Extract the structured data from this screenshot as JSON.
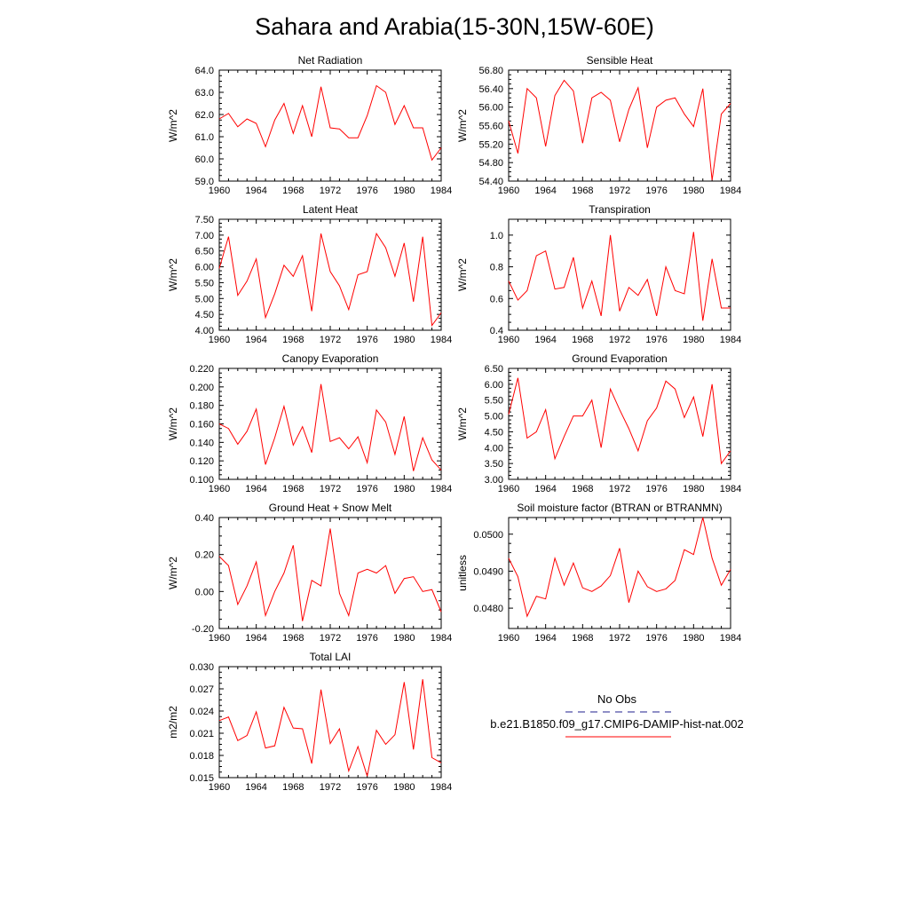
{
  "figure": {
    "title": "Sahara and Arabia(15-30N,15W-60E)",
    "line_color": "#ff0000",
    "obs_color": "#1f1f8f"
  },
  "legend": {
    "obs_label": "No Obs",
    "model_label": "b.e21.B1850.f09_g17.CMIP6-DAMIP-hist-nat.002"
  },
  "chart_data": [
    {
      "type": "line",
      "title": "Net Radiation",
      "ylabel": "W/m^2",
      "xlim": [
        1960,
        1984
      ],
      "ylim": [
        59.0,
        64.0
      ],
      "xticks": [
        "1960",
        "1964",
        "1968",
        "1972",
        "1976",
        "1980",
        "1984"
      ],
      "yticks": [
        "59.0",
        "60.0",
        "61.0",
        "62.0",
        "63.0",
        "64.0"
      ],
      "x": [
        1960,
        1961,
        1962,
        1963,
        1964,
        1965,
        1966,
        1967,
        1968,
        1969,
        1970,
        1971,
        1972,
        1973,
        1974,
        1975,
        1976,
        1977,
        1978,
        1979,
        1980,
        1981,
        1982,
        1983,
        1984
      ],
      "series": [
        {
          "values": [
            61.8,
            62.05,
            61.45,
            61.8,
            61.6,
            60.55,
            61.75,
            62.5,
            61.15,
            62.4,
            61.0,
            63.25,
            61.4,
            61.35,
            60.95,
            60.95,
            61.95,
            63.3,
            63.0,
            61.55,
            62.4,
            61.4,
            61.4,
            59.95,
            60.5
          ]
        }
      ]
    },
    {
      "type": "line",
      "title": "Sensible Heat",
      "ylabel": "W/m^2",
      "xlim": [
        1960,
        1984
      ],
      "ylim": [
        54.4,
        56.8
      ],
      "xticks": [
        "1960",
        "1964",
        "1968",
        "1972",
        "1976",
        "1980",
        "1984"
      ],
      "yticks": [
        "54.40",
        "54.80",
        "55.20",
        "55.60",
        "56.00",
        "56.40",
        "56.80"
      ],
      "x": [
        1960,
        1961,
        1962,
        1963,
        1964,
        1965,
        1966,
        1967,
        1968,
        1969,
        1970,
        1971,
        1972,
        1973,
        1974,
        1975,
        1976,
        1977,
        1978,
        1979,
        1980,
        1981,
        1982,
        1983,
        1984
      ],
      "series": [
        {
          "values": [
            55.7,
            55.0,
            56.4,
            56.2,
            55.15,
            56.25,
            56.58,
            56.35,
            55.22,
            56.2,
            56.32,
            56.15,
            55.25,
            55.95,
            56.42,
            55.12,
            56.0,
            56.15,
            56.2,
            55.85,
            55.58,
            56.4,
            54.42,
            55.85,
            56.08
          ]
        }
      ]
    },
    {
      "type": "line",
      "title": "Latent Heat",
      "ylabel": "W/m^2",
      "xlim": [
        1960,
        1984
      ],
      "ylim": [
        4.0,
        7.5
      ],
      "xticks": [
        "1960",
        "1964",
        "1968",
        "1972",
        "1976",
        "1980",
        "1984"
      ],
      "yticks": [
        "4.00",
        "4.50",
        "5.00",
        "5.50",
        "6.00",
        "6.50",
        "7.00",
        "7.50"
      ],
      "x": [
        1960,
        1961,
        1962,
        1963,
        1964,
        1965,
        1966,
        1967,
        1968,
        1969,
        1970,
        1971,
        1972,
        1973,
        1974,
        1975,
        1976,
        1977,
        1978,
        1979,
        1980,
        1981,
        1982,
        1983,
        1984
      ],
      "series": [
        {
          "values": [
            5.95,
            6.95,
            5.1,
            5.55,
            6.25,
            4.4,
            5.15,
            6.05,
            5.7,
            6.35,
            4.6,
            7.05,
            5.85,
            5.4,
            4.65,
            5.75,
            5.85,
            7.05,
            6.6,
            5.7,
            6.75,
            4.9,
            6.95,
            4.15,
            4.55
          ]
        }
      ]
    },
    {
      "type": "line",
      "title": "Transpiration",
      "ylabel": "W/m^2",
      "xlim": [
        1960,
        1984
      ],
      "ylim": [
        0.4,
        1.1
      ],
      "xticks": [
        "1960",
        "1964",
        "1968",
        "1972",
        "1976",
        "1980",
        "1984"
      ],
      "yticks": [
        "0.4",
        "0.6",
        "0.8",
        "1.0"
      ],
      "x": [
        1960,
        1961,
        1962,
        1963,
        1964,
        1965,
        1966,
        1967,
        1968,
        1969,
        1970,
        1971,
        1972,
        1973,
        1974,
        1975,
        1976,
        1977,
        1978,
        1979,
        1980,
        1981,
        1982,
        1983,
        1984
      ],
      "series": [
        {
          "values": [
            0.71,
            0.59,
            0.65,
            0.87,
            0.9,
            0.66,
            0.67,
            0.86,
            0.54,
            0.71,
            0.49,
            1.0,
            0.52,
            0.67,
            0.62,
            0.72,
            0.49,
            0.8,
            0.65,
            0.63,
            1.02,
            0.46,
            0.85,
            0.54,
            0.54
          ]
        }
      ]
    },
    {
      "type": "line",
      "title": "Canopy Evaporation",
      "ylabel": "W/m^2",
      "xlim": [
        1960,
        1984
      ],
      "ylim": [
        0.1,
        0.22
      ],
      "xticks": [
        "1960",
        "1964",
        "1968",
        "1972",
        "1976",
        "1980",
        "1984"
      ],
      "yticks": [
        "0.100",
        "0.120",
        "0.140",
        "0.160",
        "0.180",
        "0.200",
        "0.220"
      ],
      "x": [
        1960,
        1961,
        1962,
        1963,
        1964,
        1965,
        1966,
        1967,
        1968,
        1969,
        1970,
        1971,
        1972,
        1973,
        1974,
        1975,
        1976,
        1977,
        1978,
        1979,
        1980,
        1981,
        1982,
        1983,
        1984
      ],
      "series": [
        {
          "values": [
            0.16,
            0.155,
            0.138,
            0.152,
            0.176,
            0.116,
            0.145,
            0.179,
            0.137,
            0.157,
            0.129,
            0.203,
            0.141,
            0.145,
            0.133,
            0.146,
            0.118,
            0.175,
            0.162,
            0.127,
            0.168,
            0.109,
            0.145,
            0.121,
            0.11
          ]
        }
      ]
    },
    {
      "type": "line",
      "title": "Ground Evaporation",
      "ylabel": "W/m^2",
      "xlim": [
        1960,
        1984
      ],
      "ylim": [
        3.0,
        6.5
      ],
      "xticks": [
        "1960",
        "1964",
        "1968",
        "1972",
        "1976",
        "1980",
        "1984"
      ],
      "yticks": [
        "3.00",
        "3.50",
        "4.00",
        "4.50",
        "5.00",
        "5.50",
        "6.00",
        "6.50"
      ],
      "x": [
        1960,
        1961,
        1962,
        1963,
        1964,
        1965,
        1966,
        1967,
        1968,
        1969,
        1970,
        1971,
        1972,
        1973,
        1974,
        1975,
        1976,
        1977,
        1978,
        1979,
        1980,
        1981,
        1982,
        1983,
        1984
      ],
      "series": [
        {
          "values": [
            5.05,
            6.2,
            4.3,
            4.5,
            5.2,
            3.65,
            4.35,
            5.0,
            5.0,
            5.5,
            4.0,
            5.85,
            5.2,
            4.6,
            3.9,
            4.85,
            5.25,
            6.1,
            5.85,
            4.95,
            5.6,
            4.35,
            6.0,
            3.5,
            3.9
          ]
        }
      ]
    },
    {
      "type": "line",
      "title": "Ground Heat + Snow Melt",
      "ylabel": "W/m^2",
      "xlim": [
        1960,
        1984
      ],
      "ylim": [
        -0.2,
        0.4
      ],
      "xticks": [
        "1960",
        "1964",
        "1968",
        "1972",
        "1976",
        "1980",
        "1984"
      ],
      "yticks": [
        "-0.20",
        "0.00",
        "0.20",
        "0.40"
      ],
      "x": [
        1960,
        1961,
        1962,
        1963,
        1964,
        1965,
        1966,
        1967,
        1968,
        1969,
        1970,
        1971,
        1972,
        1973,
        1974,
        1975,
        1976,
        1977,
        1978,
        1979,
        1980,
        1981,
        1982,
        1983,
        1984
      ],
      "series": [
        {
          "values": [
            0.19,
            0.14,
            -0.07,
            0.03,
            0.16,
            -0.13,
            0.0,
            0.1,
            0.25,
            -0.16,
            0.06,
            0.03,
            0.34,
            -0.01,
            -0.13,
            0.1,
            0.12,
            0.1,
            0.14,
            -0.01,
            0.07,
            0.08,
            0.0,
            0.01,
            -0.11
          ]
        }
      ]
    },
    {
      "type": "line",
      "title": "Soil moisture factor (BTRAN or BTRANMN)",
      "ylabel": "unitless",
      "xlim": [
        1960,
        1984
      ],
      "ylim": [
        0.04745,
        0.05045
      ],
      "xticks": [
        "1960",
        "1964",
        "1968",
        "1972",
        "1976",
        "1980",
        "1984"
      ],
      "yticks": [
        "0.0480",
        "0.0490",
        "0.0500"
      ],
      "ytick_values": [
        0.048,
        0.049,
        0.05
      ],
      "x": [
        1960,
        1961,
        1962,
        1963,
        1964,
        1965,
        1966,
        1967,
        1968,
        1969,
        1970,
        1971,
        1972,
        1973,
        1974,
        1975,
        1976,
        1977,
        1978,
        1979,
        1980,
        1981,
        1982,
        1983,
        1984
      ],
      "series": [
        {
          "values": [
            0.04935,
            0.04885,
            0.04778,
            0.04832,
            0.04825,
            0.04935,
            0.04862,
            0.04922,
            0.04855,
            0.04845,
            0.0486,
            0.04888,
            0.04962,
            0.04815,
            0.049,
            0.04858,
            0.04845,
            0.04852,
            0.04875,
            0.04958,
            0.04945,
            0.05045,
            0.04935,
            0.04862,
            0.04905
          ]
        }
      ]
    },
    {
      "type": "line",
      "title": "Total LAI",
      "ylabel": "m2/m2",
      "xlim": [
        1960,
        1984
      ],
      "ylim": [
        0.015,
        0.03
      ],
      "xticks": [
        "1960",
        "1964",
        "1968",
        "1972",
        "1976",
        "1980",
        "1984"
      ],
      "yticks": [
        "0.015",
        "0.018",
        "0.021",
        "0.024",
        "0.027",
        "0.030"
      ],
      "x": [
        1960,
        1961,
        1962,
        1963,
        1964,
        1965,
        1966,
        1967,
        1968,
        1969,
        1970,
        1971,
        1972,
        1973,
        1974,
        1975,
        1976,
        1977,
        1978,
        1979,
        1980,
        1981,
        1982,
        1983,
        1984
      ],
      "series": [
        {
          "values": [
            0.0227,
            0.0232,
            0.02,
            0.0207,
            0.0239,
            0.019,
            0.0193,
            0.0245,
            0.0217,
            0.0216,
            0.0169,
            0.0269,
            0.0196,
            0.0216,
            0.0159,
            0.0192,
            0.0152,
            0.0214,
            0.0195,
            0.0208,
            0.0279,
            0.0188,
            0.0283,
            0.0177,
            0.017
          ]
        }
      ]
    }
  ]
}
